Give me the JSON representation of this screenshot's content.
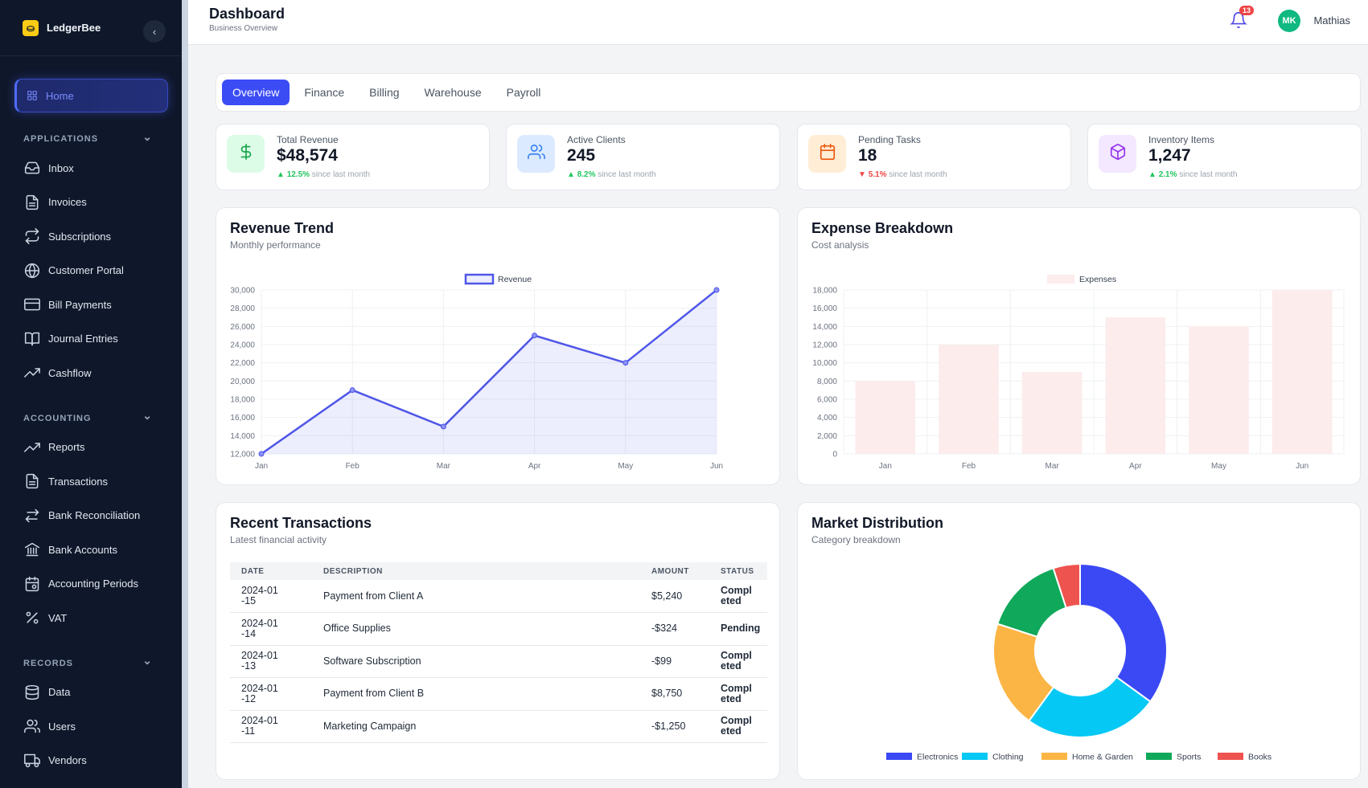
{
  "sidebar": {
    "brand": "LedgerBee",
    "home_label": "Home",
    "sections": [
      {
        "title": "APPLICATIONS",
        "items": [
          {
            "label": "Inbox",
            "icon": "inbox-icon"
          },
          {
            "label": "Invoices",
            "icon": "document-icon"
          },
          {
            "label": "Subscriptions",
            "icon": "repeat-icon"
          },
          {
            "label": "Customer Portal",
            "icon": "globe-icon"
          },
          {
            "label": "Bill Payments",
            "icon": "credit-card-icon"
          },
          {
            "label": "Journal Entries",
            "icon": "book-icon"
          },
          {
            "label": "Cashflow",
            "icon": "trending-up-icon"
          }
        ]
      },
      {
        "title": "ACCOUNTING",
        "items": [
          {
            "label": "Reports",
            "icon": "trending-up-icon"
          },
          {
            "label": "Transactions",
            "icon": "document-icon"
          },
          {
            "label": "Bank Reconciliation",
            "icon": "arrows-icon"
          },
          {
            "label": "Bank Accounts",
            "icon": "bank-icon"
          },
          {
            "label": "Accounting Periods",
            "icon": "calendar-icon"
          },
          {
            "label": "VAT",
            "icon": "percent-icon"
          }
        ]
      },
      {
        "title": "RECORDS",
        "items": [
          {
            "label": "Data",
            "icon": "database-icon"
          },
          {
            "label": "Users",
            "icon": "users-icon"
          },
          {
            "label": "Vendors",
            "icon": "truck-icon"
          }
        ]
      }
    ]
  },
  "header": {
    "title": "Dashboard",
    "subtitle": "Business Overview",
    "notifications": "13",
    "avatar_initials": "MK",
    "user_name": "Mathias"
  },
  "tabs": [
    "Overview",
    "Finance",
    "Billing",
    "Warehouse",
    "Payroll"
  ],
  "stats": [
    {
      "label": "Total Revenue",
      "value": "$48,574",
      "change": "12.5%",
      "direction": "up",
      "suffix": "since last month",
      "icon": "dollar-icon",
      "bg": "#dcfce7",
      "fg": "#16a34a"
    },
    {
      "label": "Active Clients",
      "value": "245",
      "change": "8.2%",
      "direction": "up",
      "suffix": "since last month",
      "icon": "users-icon",
      "bg": "#dbeafe",
      "fg": "#3b82f6"
    },
    {
      "label": "Pending Tasks",
      "value": "18",
      "change": "5.1%",
      "direction": "down",
      "suffix": "since last month",
      "icon": "calendar-icon",
      "bg": "#ffedd5",
      "fg": "#ea580c"
    },
    {
      "label": "Inventory Items",
      "value": "1,247",
      "change": "2.1%",
      "direction": "up",
      "suffix": "since last month",
      "icon": "box-icon",
      "bg": "#f3e8ff",
      "fg": "#9333ea"
    }
  ],
  "revenue_panel": {
    "title": "Revenue Trend",
    "subtitle": "Monthly performance"
  },
  "expense_panel": {
    "title": "Expense Breakdown",
    "subtitle": "Cost analysis"
  },
  "transactions_panel": {
    "title": "Recent Transactions",
    "subtitle": "Latest financial activity",
    "columns": [
      "DATE",
      "DESCRIPTION",
      "AMOUNT",
      "STATUS"
    ],
    "rows": [
      {
        "date": "2024-01-15",
        "description": "Payment from Client A",
        "amount": "$5,240",
        "status": "Completed"
      },
      {
        "date": "2024-01-14",
        "description": "Office Supplies",
        "amount": "-$324",
        "status": "Pending"
      },
      {
        "date": "2024-01-13",
        "description": "Software Subscription",
        "amount": "-$99",
        "status": "Completed"
      },
      {
        "date": "2024-01-12",
        "description": "Payment from Client B",
        "amount": "$8,750",
        "status": "Completed"
      },
      {
        "date": "2024-01-11",
        "description": "Marketing Campaign",
        "amount": "-$1,250",
        "status": "Completed"
      }
    ]
  },
  "market_panel": {
    "title": "Market Distribution",
    "subtitle": "Category breakdown"
  },
  "chart_data": [
    {
      "id": "revenue",
      "type": "line",
      "categories": [
        "Jan",
        "Feb",
        "Mar",
        "Apr",
        "May",
        "Jun"
      ],
      "series": [
        {
          "name": "Revenue",
          "values": [
            12000,
            19000,
            15000,
            25000,
            22000,
            30000
          ],
          "color": "#4f56e8"
        }
      ],
      "ylim": [
        12000,
        30000
      ],
      "yticks": [
        "12,000",
        "14,000",
        "16,000",
        "18,000",
        "20,000",
        "22,000",
        "24,000",
        "26,000",
        "28,000",
        "30,000"
      ],
      "legend": "top"
    },
    {
      "id": "expenses",
      "type": "bar",
      "categories": [
        "Jan",
        "Feb",
        "Mar",
        "Apr",
        "May",
        "Jun"
      ],
      "series": [
        {
          "name": "Expenses",
          "values": [
            8000,
            12000,
            9000,
            15000,
            14000,
            18000
          ],
          "color": "#fdecec"
        }
      ],
      "ylim": [
        0,
        18000
      ],
      "yticks": [
        "0",
        "2,000",
        "4,000",
        "6,000",
        "8,000",
        "10,000",
        "12,000",
        "14,000",
        "16,000",
        "18,000"
      ],
      "legend": "top"
    },
    {
      "id": "market",
      "type": "pie",
      "categories": [
        "Electronics",
        "Clothing",
        "Home & Garden",
        "Sports",
        "Books"
      ],
      "values": [
        35,
        25,
        20,
        15,
        5
      ],
      "colors": [
        "#3b49f5",
        "#06c8f5",
        "#fbb545",
        "#10a85a",
        "#ef5350"
      ],
      "legend": "bottom"
    }
  ]
}
